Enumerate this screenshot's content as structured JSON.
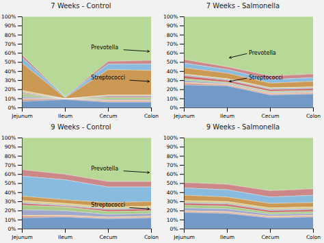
{
  "chart_data": [
    {
      "type": "area",
      "stacked": true,
      "grid": false,
      "title": "7 Weeks - Control",
      "categories": [
        "Jejunum",
        "Ileum",
        "Cecum",
        "Colon"
      ],
      "series": [
        {
          "color": "#7399c6",
          "values": [
            0.07,
            0.09,
            0.06,
            0.06
          ]
        },
        {
          "color": "#d4968a",
          "values": [
            0.02,
            0.01,
            0.01,
            0.01
          ]
        },
        {
          "color": "#e8b87a",
          "values": [
            0.01,
            0.0,
            0.01,
            0.01
          ]
        },
        {
          "color": "#a0a8cc",
          "values": [
            0.02,
            0.0,
            0.01,
            0.01
          ]
        },
        {
          "color": "#a8cc88",
          "values": [
            0.03,
            0.0,
            0.02,
            0.02
          ]
        },
        {
          "color": "#cc6666",
          "values": [
            0.01,
            0.0,
            0.01,
            0.01
          ]
        },
        {
          "color": "#88aace",
          "values": [
            0.01,
            0.0,
            0.01,
            0.01
          ]
        },
        {
          "color": "#ddcc88",
          "values": [
            0.02,
            0.0,
            0.01,
            0.01
          ]
        },
        {
          "color": "#cc9955",
          "values": [
            0.3,
            0.01,
            0.28,
            0.27
          ]
        },
        {
          "color": "#88bbdd",
          "values": [
            0.06,
            0.01,
            0.06,
            0.07
          ]
        },
        {
          "color": "#cc8888",
          "values": [
            0.03,
            0.0,
            0.03,
            0.04
          ]
        },
        {
          "color": "#b8d898",
          "values": [
            0.42,
            0.88,
            0.49,
            0.48
          ]
        }
      ],
      "ylim": [
        0,
        1
      ],
      "yticks": [
        {
          "value": 0,
          "label": "0%"
        },
        {
          "value": 0.1,
          "label": "10%"
        },
        {
          "value": 0.2,
          "label": "20%"
        },
        {
          "value": 0.3,
          "label": "30%"
        },
        {
          "value": 0.4,
          "label": "40%"
        },
        {
          "value": 0.5,
          "label": "50%"
        },
        {
          "value": 0.6,
          "label": "60%"
        },
        {
          "value": 0.7,
          "label": "70%"
        },
        {
          "value": 0.8,
          "label": "80%"
        },
        {
          "value": 0.9,
          "label": "90%"
        },
        {
          "value": 1,
          "label": "100%"
        }
      ],
      "annotations": [
        {
          "text": "Prevotella",
          "xy": [
            2.95,
            0.62
          ],
          "xytext": [
            1.6,
            0.66
          ]
        },
        {
          "text": "Streptococci",
          "xy": [
            2.95,
            0.29
          ],
          "xytext": [
            1.6,
            0.33
          ]
        }
      ]
    },
    {
      "type": "area",
      "stacked": true,
      "grid": false,
      "title": "7 Weeks - Salmonella",
      "categories": [
        "Jejunum",
        "Ileum",
        "Cecum",
        "Colon"
      ],
      "series": [
        {
          "color": "#7399c6",
          "values": [
            0.25,
            0.24,
            0.14,
            0.15
          ]
        },
        {
          "color": "#d4968a",
          "values": [
            0.02,
            0.01,
            0.01,
            0.01
          ]
        },
        {
          "color": "#e8b87a",
          "values": [
            0.01,
            0.01,
            0.01,
            0.01
          ]
        },
        {
          "color": "#a0a8cc",
          "values": [
            0.02,
            0.01,
            0.01,
            0.01
          ]
        },
        {
          "color": "#a8cc88",
          "values": [
            0.02,
            0.01,
            0.01,
            0.01
          ]
        },
        {
          "color": "#cc6666",
          "values": [
            0.03,
            0.02,
            0.02,
            0.02
          ]
        },
        {
          "color": "#88aace",
          "values": [
            0.01,
            0.01,
            0.01,
            0.01
          ]
        },
        {
          "color": "#ddcc88",
          "values": [
            0.01,
            0.01,
            0.01,
            0.01
          ]
        },
        {
          "color": "#cc9955",
          "values": [
            0.07,
            0.06,
            0.05,
            0.06
          ]
        },
        {
          "color": "#88bbdd",
          "values": [
            0.05,
            0.04,
            0.04,
            0.04
          ]
        },
        {
          "color": "#cc8888",
          "values": [
            0.04,
            0.03,
            0.04,
            0.04
          ]
        },
        {
          "color": "#b8d898",
          "values": [
            0.47,
            0.55,
            0.65,
            0.63
          ]
        }
      ],
      "ylim": [
        0,
        1
      ],
      "yticks": [
        {
          "value": 0,
          "label": "0%"
        },
        {
          "value": 0.1,
          "label": "10%"
        },
        {
          "value": 0.2,
          "label": "20%"
        },
        {
          "value": 0.3,
          "label": "30%"
        },
        {
          "value": 0.4,
          "label": "40%"
        },
        {
          "value": 0.5,
          "label": "50%"
        },
        {
          "value": 0.6,
          "label": "60%"
        },
        {
          "value": 0.7,
          "label": "70%"
        },
        {
          "value": 0.8,
          "label": "80%"
        },
        {
          "value": 0.9,
          "label": "90%"
        },
        {
          "value": 1,
          "label": "100%"
        }
      ],
      "annotations": [
        {
          "text": "Prevotella",
          "xy": [
            1.05,
            0.55
          ],
          "xytext": [
            1.5,
            0.6
          ]
        },
        {
          "text": "Streptococci",
          "xy": [
            1.05,
            0.29
          ],
          "xytext": [
            1.5,
            0.33
          ]
        }
      ]
    },
    {
      "type": "area",
      "stacked": true,
      "grid": false,
      "title": "9 Weeks - Control",
      "categories": [
        "Jejunum",
        "Ileum",
        "Cecum",
        "Colon"
      ],
      "series": [
        {
          "color": "#7399c6",
          "values": [
            0.12,
            0.13,
            0.11,
            0.12
          ]
        },
        {
          "color": "#d4968a",
          "values": [
            0.02,
            0.01,
            0.01,
            0.01
          ]
        },
        {
          "color": "#e8b87a",
          "values": [
            0.01,
            0.01,
            0.01,
            0.01
          ]
        },
        {
          "color": "#a0a8cc",
          "values": [
            0.06,
            0.05,
            0.03,
            0.03
          ]
        },
        {
          "color": "#a8cc88",
          "values": [
            0.05,
            0.04,
            0.03,
            0.03
          ]
        },
        {
          "color": "#cc6666",
          "values": [
            0.02,
            0.01,
            0.02,
            0.02
          ]
        },
        {
          "color": "#88aace",
          "values": [
            0.01,
            0.01,
            0.01,
            0.01
          ]
        },
        {
          "color": "#ddcc88",
          "values": [
            0.02,
            0.02,
            0.02,
            0.02
          ]
        },
        {
          "color": "#cc9955",
          "values": [
            0.05,
            0.04,
            0.05,
            0.05
          ]
        },
        {
          "color": "#88bbdd",
          "values": [
            0.22,
            0.22,
            0.17,
            0.16
          ]
        },
        {
          "color": "#cc8888",
          "values": [
            0.07,
            0.06,
            0.06,
            0.06
          ]
        },
        {
          "color": "#b8d898",
          "values": [
            0.35,
            0.4,
            0.48,
            0.48
          ]
        }
      ],
      "ylim": [
        0,
        1
      ],
      "yticks": [
        {
          "value": 0,
          "label": "0%"
        },
        {
          "value": 0.1,
          "label": "10%"
        },
        {
          "value": 0.2,
          "label": "20%"
        },
        {
          "value": 0.3,
          "label": "30%"
        },
        {
          "value": 0.4,
          "label": "40%"
        },
        {
          "value": 0.5,
          "label": "50%"
        },
        {
          "value": 0.6,
          "label": "60%"
        },
        {
          "value": 0.7,
          "label": "70%"
        },
        {
          "value": 0.8,
          "label": "80%"
        },
        {
          "value": 0.9,
          "label": "90%"
        },
        {
          "value": 1,
          "label": "100%"
        }
      ],
      "annotations": [
        {
          "text": "Prevotella",
          "xy": [
            2.95,
            0.62
          ],
          "xytext": [
            1.6,
            0.66
          ]
        },
        {
          "text": "Streptococci",
          "xy": [
            2.95,
            0.22
          ],
          "xytext": [
            1.6,
            0.26
          ]
        }
      ]
    },
    {
      "type": "area",
      "stacked": true,
      "grid": false,
      "title": "9 Weeks - Salmonella",
      "categories": [
        "Jejunum",
        "Ileum",
        "Cecum",
        "Colon"
      ],
      "series": [
        {
          "color": "#7399c6",
          "values": [
            0.18,
            0.17,
            0.12,
            0.13
          ]
        },
        {
          "color": "#d4968a",
          "values": [
            0.01,
            0.01,
            0.01,
            0.01
          ]
        },
        {
          "color": "#e8b87a",
          "values": [
            0.01,
            0.01,
            0.01,
            0.01
          ]
        },
        {
          "color": "#a0a8cc",
          "values": [
            0.03,
            0.03,
            0.02,
            0.02
          ]
        },
        {
          "color": "#a8cc88",
          "values": [
            0.03,
            0.03,
            0.02,
            0.02
          ]
        },
        {
          "color": "#cc6666",
          "values": [
            0.02,
            0.02,
            0.02,
            0.02
          ]
        },
        {
          "color": "#88aace",
          "values": [
            0.01,
            0.01,
            0.01,
            0.01
          ]
        },
        {
          "color": "#ddcc88",
          "values": [
            0.02,
            0.02,
            0.02,
            0.02
          ]
        },
        {
          "color": "#cc9955",
          "values": [
            0.06,
            0.05,
            0.05,
            0.05
          ]
        },
        {
          "color": "#88bbdd",
          "values": [
            0.08,
            0.08,
            0.07,
            0.08
          ]
        },
        {
          "color": "#cc8888",
          "values": [
            0.06,
            0.06,
            0.07,
            0.07
          ]
        },
        {
          "color": "#b8d898",
          "values": [
            0.49,
            0.51,
            0.58,
            0.56
          ]
        }
      ],
      "ylim": [
        0,
        1
      ],
      "yticks": [
        {
          "value": 0,
          "label": "0%"
        },
        {
          "value": 0.1,
          "label": "10%"
        },
        {
          "value": 0.2,
          "label": "20%"
        },
        {
          "value": 0.3,
          "label": "30%"
        },
        {
          "value": 0.4,
          "label": "40%"
        },
        {
          "value": 0.5,
          "label": "50%"
        },
        {
          "value": 0.6,
          "label": "60%"
        },
        {
          "value": 0.7,
          "label": "70%"
        },
        {
          "value": 0.8,
          "label": "80%"
        },
        {
          "value": 0.9,
          "label": "90%"
        },
        {
          "value": 1,
          "label": "100%"
        }
      ],
      "annotations": []
    }
  ]
}
